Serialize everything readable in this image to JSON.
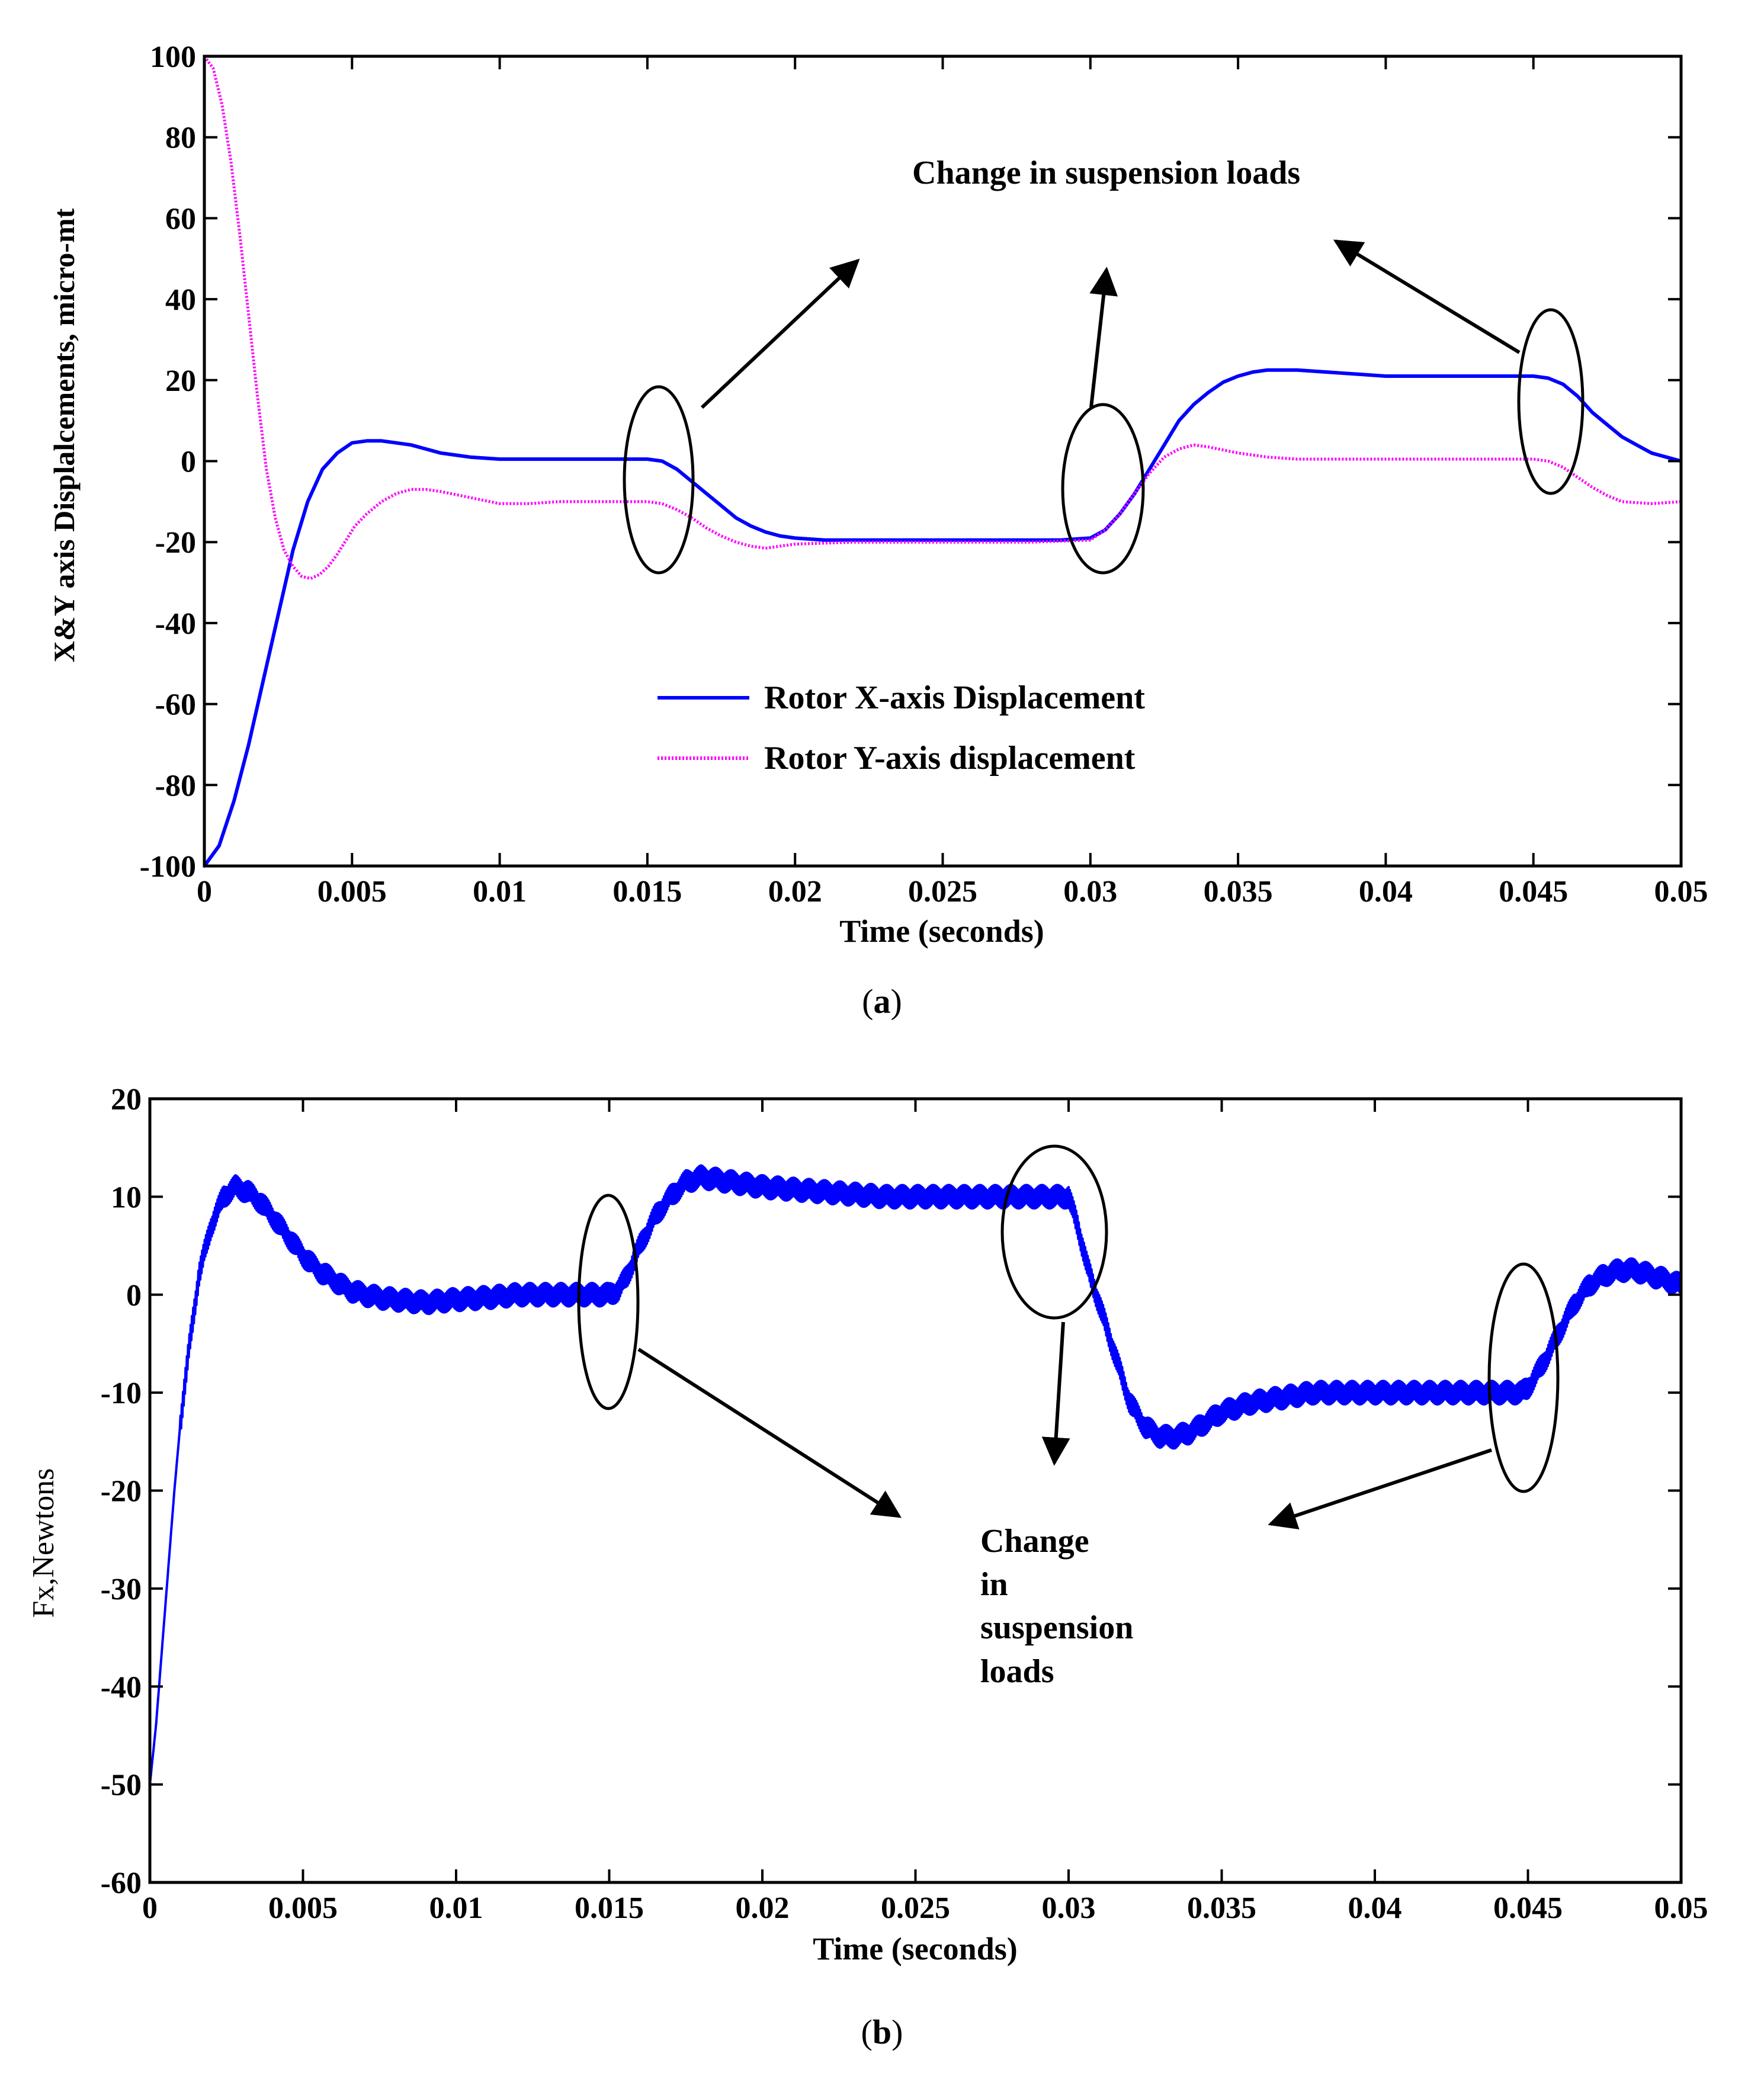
{
  "figure": {
    "panel_a_caption": "(a)",
    "panel_b_caption": "(b)",
    "caption_letter_a": "a",
    "caption_letter_b": "b"
  },
  "colors": {
    "x_series": "#0000ff",
    "y_series": "#ff00ff",
    "axes": "#000000",
    "annotation": "#000000"
  },
  "chart_data": [
    {
      "id": "a",
      "type": "line",
      "title": "",
      "xlabel": "Time (seconds)",
      "ylabel": "X&Y axis Displalcements, micro-mt",
      "xlim": [
        0,
        0.05
      ],
      "ylim": [
        -100,
        100
      ],
      "xticks": [
        0,
        0.005,
        0.01,
        0.015,
        0.02,
        0.025,
        0.03,
        0.035,
        0.04,
        0.045,
        0.05
      ],
      "xtick_labels": [
        "0",
        "0.005",
        "0.01",
        "0.015",
        "0.02",
        "0.025",
        "0.03",
        "0.035",
        "0.04",
        "0.045",
        "0.05"
      ],
      "yticks": [
        -100,
        -80,
        -60,
        -40,
        -20,
        0,
        20,
        40,
        60,
        80,
        100
      ],
      "ytick_labels": [
        "-100",
        "-80",
        "-60",
        "-40",
        "-20",
        "0",
        "20",
        "40",
        "60",
        "80",
        "100"
      ],
      "grid": false,
      "legend_position": "bottom-center",
      "series": [
        {
          "name": "Rotor X-axis Displacement",
          "style": "solid",
          "x": [
            0,
            0.0005,
            0.001,
            0.0015,
            0.002,
            0.0025,
            0.003,
            0.0035,
            0.004,
            0.0045,
            0.005,
            0.0055,
            0.006,
            0.0065,
            0.007,
            0.0075,
            0.008,
            0.009,
            0.01,
            0.011,
            0.012,
            0.013,
            0.014,
            0.015,
            0.0155,
            0.016,
            0.0165,
            0.017,
            0.0175,
            0.018,
            0.0185,
            0.019,
            0.0195,
            0.02,
            0.021,
            0.022,
            0.023,
            0.025,
            0.027,
            0.029,
            0.03,
            0.0305,
            0.031,
            0.0315,
            0.032,
            0.0325,
            0.033,
            0.0335,
            0.034,
            0.0345,
            0.035,
            0.0355,
            0.036,
            0.0365,
            0.037,
            0.038,
            0.039,
            0.04,
            0.041,
            0.042,
            0.043,
            0.044,
            0.045,
            0.0455,
            0.046,
            0.0465,
            0.047,
            0.0475,
            0.048,
            0.0485,
            0.049,
            0.0495,
            0.05
          ],
          "values": [
            -100,
            -95,
            -84,
            -70,
            -54,
            -38,
            -22,
            -10,
            -2,
            2,
            4.5,
            5,
            5,
            4.5,
            4,
            3,
            2,
            1,
            0.5,
            0.5,
            0.5,
            0.5,
            0.5,
            0.5,
            0,
            -2,
            -5,
            -8,
            -11,
            -14,
            -16,
            -17.5,
            -18.5,
            -19,
            -19.5,
            -19.5,
            -19.5,
            -19.5,
            -19.5,
            -19.5,
            -19,
            -17,
            -13,
            -8,
            -2,
            4,
            10,
            14,
            17,
            19.5,
            21,
            22,
            22.5,
            22.5,
            22.5,
            22,
            21.5,
            21,
            21,
            21,
            21,
            21,
            21,
            20.5,
            19,
            16,
            12,
            9,
            6,
            4,
            2,
            1,
            0
          ]
        },
        {
          "name": "Rotor Y-axis displacement",
          "style": "dotted",
          "x": [
            0,
            0.0003,
            0.0006,
            0.0009,
            0.0012,
            0.0015,
            0.0018,
            0.0021,
            0.0024,
            0.0027,
            0.003,
            0.0033,
            0.0036,
            0.0039,
            0.0042,
            0.0045,
            0.0048,
            0.0051,
            0.0055,
            0.006,
            0.0065,
            0.007,
            0.0075,
            0.008,
            0.009,
            0.01,
            0.011,
            0.012,
            0.013,
            0.014,
            0.015,
            0.0155,
            0.016,
            0.0165,
            0.017,
            0.0175,
            0.018,
            0.0185,
            0.019,
            0.0195,
            0.02,
            0.022,
            0.025,
            0.028,
            0.03,
            0.0305,
            0.031,
            0.0315,
            0.032,
            0.0325,
            0.033,
            0.0335,
            0.034,
            0.035,
            0.036,
            0.037,
            0.038,
            0.039,
            0.04,
            0.042,
            0.044,
            0.045,
            0.0455,
            0.046,
            0.0465,
            0.047,
            0.0475,
            0.048,
            0.049,
            0.05
          ],
          "values": [
            100,
            97,
            88,
            74,
            56,
            36,
            16,
            -2,
            -14,
            -22,
            -26,
            -28.5,
            -29,
            -28,
            -26,
            -23,
            -19.5,
            -16,
            -13,
            -10,
            -8,
            -7,
            -7,
            -7.5,
            -9,
            -10.5,
            -10.5,
            -10,
            -10,
            -10,
            -10,
            -10.5,
            -12,
            -14,
            -16.5,
            -18.5,
            -20,
            -21,
            -21.5,
            -21,
            -20.5,
            -20,
            -20,
            -20,
            -19.5,
            -17,
            -13,
            -8,
            -3,
            1,
            3,
            4,
            3.5,
            2,
            1,
            0.5,
            0.5,
            0.5,
            0.5,
            0.5,
            0.5,
            0.5,
            0,
            -1.5,
            -4,
            -6.5,
            -8.5,
            -10,
            -10.5,
            -10
          ]
        }
      ],
      "annotation": "Change in suspension loads"
    },
    {
      "id": "b",
      "type": "line",
      "title": "",
      "xlabel": "Time (seconds)",
      "ylabel": "Fx,Newtons",
      "xlim": [
        0,
        0.05
      ],
      "ylim": [
        -60,
        20
      ],
      "xticks": [
        0,
        0.005,
        0.01,
        0.015,
        0.02,
        0.025,
        0.03,
        0.035,
        0.04,
        0.045,
        0.05
      ],
      "xtick_labels": [
        "0",
        "0.005",
        "0.01",
        "0.015",
        "0.02",
        "0.025",
        "0.03",
        "0.035",
        "0.04",
        "0.045",
        "0.05"
      ],
      "yticks": [
        -60,
        -50,
        -40,
        -30,
        -20,
        -10,
        0,
        10,
        20
      ],
      "ytick_labels": [
        "-60",
        "-50",
        "-40",
        "-30",
        "-20",
        "-10",
        "0",
        "10",
        "20"
      ],
      "grid": false,
      "series": [
        {
          "name": "Fx",
          "style": "solid-noisy",
          "x": [
            0,
            0.0002,
            0.0004,
            0.0006,
            0.0008,
            0.001,
            0.0013,
            0.0016,
            0.002,
            0.0024,
            0.0028,
            0.0032,
            0.0036,
            0.004,
            0.0045,
            0.005,
            0.0055,
            0.006,
            0.0065,
            0.007,
            0.0075,
            0.008,
            0.009,
            0.01,
            0.011,
            0.012,
            0.013,
            0.014,
            0.0145,
            0.015,
            0.0153,
            0.0156,
            0.016,
            0.0165,
            0.017,
            0.0175,
            0.018,
            0.019,
            0.02,
            0.022,
            0.024,
            0.026,
            0.028,
            0.0295,
            0.0298,
            0.03,
            0.0303,
            0.0306,
            0.031,
            0.0315,
            0.032,
            0.0325,
            0.033,
            0.0335,
            0.034,
            0.0345,
            0.035,
            0.036,
            0.037,
            0.038,
            0.04,
            0.042,
            0.044,
            0.0448,
            0.045,
            0.0455,
            0.046,
            0.0465,
            0.047,
            0.0475,
            0.048,
            0.0485,
            0.049,
            0.0495,
            0.05
          ],
          "values": [
            -50,
            -44,
            -36,
            -28,
            -20,
            -13,
            -5,
            2,
            7,
            10,
            11,
            10.5,
            9.5,
            8,
            6,
            4,
            2.5,
            1.5,
            0.5,
            0,
            -0.3,
            -0.5,
            -0.8,
            -0.5,
            -0.3,
            0,
            0,
            0,
            0,
            0,
            0.5,
            2,
            5,
            8,
            10,
            11.5,
            12,
            11.5,
            11,
            10.5,
            10,
            10,
            10,
            10,
            10,
            10,
            7,
            3,
            -1,
            -6,
            -11,
            -13.5,
            -14.5,
            -14.5,
            -14,
            -13,
            -12,
            -11,
            -10.5,
            -10,
            -10,
            -10,
            -10,
            -10,
            -9.5,
            -7,
            -4,
            -1,
            1,
            2,
            2.5,
            2.5,
            2,
            1.5,
            1
          ]
        }
      ],
      "annotation": [
        "Change",
        "in",
        "suspension",
        "loads"
      ]
    }
  ]
}
